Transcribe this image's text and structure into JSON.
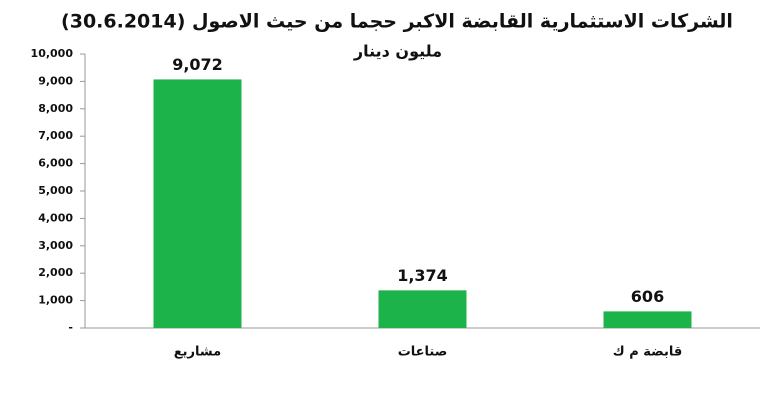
{
  "chart_data": {
    "type": "bar",
    "title": "الشركات الاستثمارية القابضة الاكبر حجما من حيث الاصول (30.6.2014)",
    "subtitle": "مليون دينار",
    "categories": [
      "مشاريع",
      "صناعات",
      "قابضة م ك"
    ],
    "values": [
      9072,
      1374,
      606
    ],
    "value_labels": [
      "9,072",
      "1,374",
      "606"
    ],
    "color": "#1db34b",
    "ylim": [
      0,
      10000
    ],
    "yticks": [
      {
        "value": 0,
        "label": "-"
      },
      {
        "value": 1000,
        "label": "1,000"
      },
      {
        "value": 2000,
        "label": "2,000"
      },
      {
        "value": 3000,
        "label": "3,000"
      },
      {
        "value": 4000,
        "label": "4,000"
      },
      {
        "value": 5000,
        "label": "5,000"
      },
      {
        "value": 6000,
        "label": "6,000"
      },
      {
        "value": 7000,
        "label": "7,000"
      },
      {
        "value": 8000,
        "label": "8,000"
      },
      {
        "value": 9000,
        "label": "9,000"
      },
      {
        "value": 10000,
        "label": "10,000"
      }
    ]
  }
}
